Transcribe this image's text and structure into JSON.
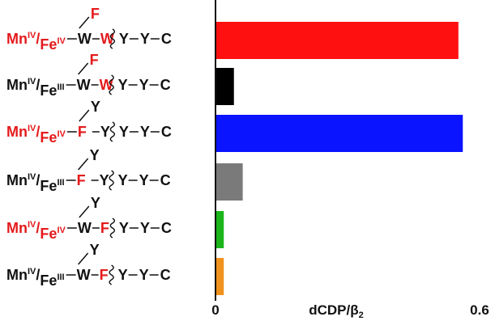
{
  "chart_data": {
    "type": "bar",
    "orientation": "horizontal",
    "xlabel": "dCDP/β₂",
    "xlabel_parts": {
      "main": "dCDP/β",
      "sub": "2"
    },
    "xlim": [
      0,
      0.6
    ],
    "ticks": [
      {
        "value": 0,
        "label": "0"
      },
      {
        "value": 0.6,
        "label": "0.6"
      }
    ],
    "categories": [
      {
        "red_metals": true,
        "metal1": "Mn",
        "ox1": "IV",
        "metal2": "Fe",
        "ox2": "IV",
        "branch": "F",
        "branch_red": true,
        "res1": "W",
        "res1_red": false,
        "res2": "W",
        "res2_red": true,
        "tail": [
          "Y",
          "Y",
          "C"
        ]
      },
      {
        "red_metals": false,
        "metal1": "Mn",
        "ox1": "IV",
        "metal2": "Fe",
        "ox2": "III",
        "branch": "F",
        "branch_red": true,
        "res1": "W",
        "res1_red": false,
        "res2": "W",
        "res2_red": true,
        "tail": [
          "Y",
          "Y",
          "C"
        ]
      },
      {
        "red_metals": true,
        "metal1": "Mn",
        "ox1": "IV",
        "metal2": "Fe",
        "ox2": "IV",
        "branch": "Y",
        "branch_red": false,
        "res1": "F",
        "res1_red": true,
        "res2": "Y",
        "res2_red": false,
        "tail": [
          "Y",
          "Y",
          "C"
        ]
      },
      {
        "red_metals": false,
        "metal1": "Mn",
        "ox1": "IV",
        "metal2": "Fe",
        "ox2": "III",
        "branch": "Y",
        "branch_red": false,
        "res1": "F",
        "res1_red": true,
        "res2": "Y",
        "res2_red": false,
        "tail": [
          "Y",
          "Y",
          "C"
        ]
      },
      {
        "red_metals": true,
        "metal1": "Mn",
        "ox1": "IV",
        "metal2": "Fe",
        "ox2": "IV",
        "branch": "Y",
        "branch_red": false,
        "res1": "W",
        "res1_red": false,
        "res2": "F",
        "res2_red": true,
        "tail": [
          "Y",
          "Y",
          "C"
        ]
      },
      {
        "red_metals": false,
        "metal1": "Mn",
        "ox1": "IV",
        "metal2": "Fe",
        "ox2": "III",
        "branch": "Y",
        "branch_red": false,
        "res1": "W",
        "res1_red": false,
        "res2": "F",
        "res2_red": true,
        "tail": [
          "Y",
          "Y",
          "C"
        ]
      }
    ],
    "values": [
      0.55,
      0.04,
      0.56,
      0.06,
      0.017,
      0.017
    ],
    "bar_colors": [
      "#ff1010",
      "#000000",
      "#0a14ff",
      "#7a7a7a",
      "#1bb51b",
      "#f0921e"
    ],
    "grid": false,
    "legend": "none"
  },
  "colors": {
    "red": "#e41a1c",
    "text": "#111111"
  }
}
